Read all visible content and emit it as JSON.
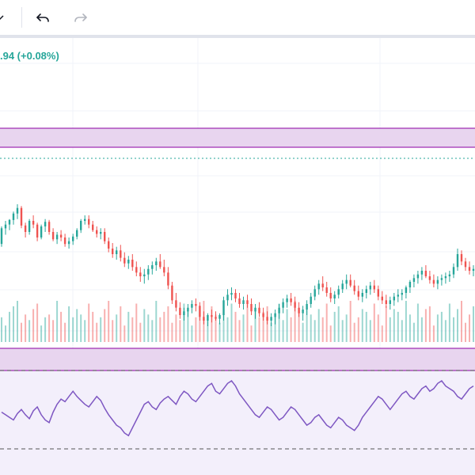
{
  "toolbar": {
    "dropdown_icon": "chevron-down-icon",
    "undo_icon": "undo-icon",
    "redo_icon": "redo-icon"
  },
  "header": {
    "price_change_text": ".94 (+0.08%)"
  },
  "colors": {
    "up": "#26a69a",
    "down": "#ef5350",
    "highlight_band": "#9c27b0",
    "rsi_line": "#7e57c2",
    "rsi_fill": "#ede7f6",
    "grid": "#f0f3fa"
  },
  "chart_data": {
    "type": "candlestick",
    "series": [
      {
        "name": "",
        "type": "candlestick",
        "values": [
          [
            345,
            364,
            342,
            362
          ],
          [
            362,
            370,
            355,
            366
          ],
          [
            366,
            372,
            360,
            371
          ],
          [
            371,
            380,
            366,
            378
          ],
          [
            378,
            388,
            372,
            384
          ],
          [
            384,
            386,
            362,
            365
          ],
          [
            365,
            368,
            352,
            358
          ],
          [
            358,
            372,
            355,
            370
          ],
          [
            370,
            376,
            362,
            366
          ],
          [
            366,
            368,
            348,
            352
          ],
          [
            352,
            366,
            350,
            364
          ],
          [
            364,
            372,
            358,
            369
          ],
          [
            369,
            371,
            355,
            358
          ],
          [
            358,
            362,
            348,
            350
          ],
          [
            350,
            358,
            345,
            355
          ],
          [
            355,
            360,
            348,
            352
          ],
          [
            352,
            356,
            342,
            345
          ],
          [
            345,
            352,
            340,
            348
          ],
          [
            348,
            356,
            344,
            353
          ],
          [
            353,
            362,
            350,
            360
          ],
          [
            360,
            372,
            357,
            370
          ],
          [
            370,
            376,
            366,
            372
          ],
          [
            372,
            376,
            362,
            366
          ],
          [
            366,
            370,
            358,
            360
          ],
          [
            360,
            364,
            352,
            356
          ],
          [
            356,
            362,
            350,
            358
          ],
          [
            358,
            362,
            345,
            348
          ],
          [
            348,
            352,
            336,
            340
          ],
          [
            340,
            346,
            330,
            334
          ],
          [
            334,
            342,
            328,
            338
          ],
          [
            338,
            344,
            326,
            330
          ],
          [
            330,
            336,
            320,
            324
          ],
          [
            324,
            332,
            318,
            328
          ],
          [
            328,
            334,
            316,
            320
          ],
          [
            320,
            326,
            310,
            314
          ],
          [
            314,
            320,
            304,
            310
          ],
          [
            310,
            318,
            302,
            312
          ],
          [
            312,
            322,
            306,
            318
          ],
          [
            318,
            326,
            312,
            322
          ],
          [
            322,
            330,
            316,
            326
          ],
          [
            326,
            334,
            318,
            320
          ],
          [
            320,
            328,
            310,
            314
          ],
          [
            314,
            320,
            296,
            300
          ],
          [
            300,
            304,
            280,
            284
          ],
          [
            284,
            292,
            272,
            276
          ],
          [
            276,
            282,
            264,
            268
          ],
          [
            268,
            276,
            262,
            272
          ],
          [
            272,
            280,
            266,
            276
          ],
          [
            276,
            284,
            270,
            280
          ],
          [
            280,
            286,
            272,
            278
          ],
          [
            278,
            282,
            262,
            266
          ],
          [
            266,
            272,
            258,
            262
          ],
          [
            262,
            270,
            256,
            268
          ],
          [
            268,
            274,
            260,
            266
          ],
          [
            266,
            272,
            262,
            264
          ],
          [
            264,
            270,
            258,
            268
          ],
          [
            268,
            288,
            262,
            284
          ],
          [
            284,
            296,
            278,
            290
          ],
          [
            290,
            298,
            284,
            292
          ],
          [
            292,
            296,
            282,
            286
          ],
          [
            286,
            292,
            276,
            280
          ],
          [
            280,
            288,
            274,
            284
          ],
          [
            284,
            290,
            276,
            280
          ],
          [
            280,
            286,
            268,
            272
          ],
          [
            272,
            280,
            264,
            276
          ],
          [
            276,
            282,
            266,
            270
          ],
          [
            270,
            276,
            262,
            266
          ],
          [
            266,
            272,
            258,
            262
          ],
          [
            262,
            270,
            256,
            266
          ],
          [
            266,
            274,
            258,
            270
          ],
          [
            270,
            280,
            264,
            276
          ],
          [
            276,
            286,
            270,
            282
          ],
          [
            282,
            290,
            276,
            286
          ],
          [
            286,
            292,
            278,
            282
          ],
          [
            282,
            288,
            272,
            276
          ],
          [
            276,
            282,
            266,
            270
          ],
          [
            270,
            278,
            262,
            274
          ],
          [
            274,
            284,
            268,
            280
          ],
          [
            280,
            292,
            276,
            288
          ],
          [
            288,
            300,
            284,
            296
          ],
          [
            296,
            306,
            290,
            302
          ],
          [
            302,
            310,
            294,
            298
          ],
          [
            298,
            304,
            288,
            292
          ],
          [
            292,
            298,
            282,
            286
          ],
          [
            286,
            294,
            280,
            290
          ],
          [
            290,
            300,
            286,
            296
          ],
          [
            296,
            306,
            292,
            302
          ],
          [
            302,
            312,
            296,
            306
          ],
          [
            306,
            312,
            298,
            300
          ],
          [
            300,
            306,
            290,
            294
          ],
          [
            294,
            300,
            284,
            288
          ],
          [
            288,
            296,
            282,
            292
          ],
          [
            292,
            300,
            286,
            296
          ],
          [
            296,
            304,
            290,
            300
          ],
          [
            300,
            306,
            292,
            296
          ],
          [
            296,
            300,
            284,
            288
          ],
          [
            288,
            294,
            280,
            284
          ],
          [
            284,
            290,
            276,
            280
          ],
          [
            280,
            288,
            274,
            284
          ],
          [
            284,
            292,
            278,
            288
          ],
          [
            288,
            296,
            282,
            290
          ],
          [
            290,
            296,
            284,
            292
          ],
          [
            292,
            300,
            286,
            298
          ],
          [
            298,
            306,
            292,
            304
          ],
          [
            304,
            312,
            298,
            308
          ],
          [
            308,
            316,
            302,
            312
          ],
          [
            312,
            320,
            306,
            316
          ],
          [
            316,
            322,
            308,
            310
          ],
          [
            310,
            316,
            302,
            306
          ],
          [
            306,
            312,
            298,
            302
          ],
          [
            302,
            310,
            296,
            306
          ],
          [
            306,
            312,
            300,
            308
          ],
          [
            308,
            314,
            302,
            310
          ],
          [
            310,
            316,
            304,
            312
          ],
          [
            312,
            324,
            308,
            320
          ],
          [
            320,
            340,
            316,
            334
          ],
          [
            334,
            338,
            322,
            326
          ],
          [
            326,
            330,
            316,
            320
          ],
          [
            320,
            326,
            312,
            316
          ],
          [
            316,
            322,
            310,
            318
          ]
        ]
      }
    ],
    "volume": [
      18,
      12,
      22,
      26,
      30,
      14,
      20,
      16,
      24,
      28,
      12,
      18,
      20,
      16,
      30,
      22,
      14,
      26,
      18,
      24,
      20,
      16,
      28,
      22,
      14,
      18,
      24,
      30,
      16,
      20,
      26,
      12,
      22,
      18,
      28,
      14,
      24,
      20,
      16,
      30,
      18,
      22,
      26,
      14,
      20,
      16,
      28,
      24,
      12,
      18,
      22,
      30,
      16,
      26,
      20,
      14,
      24,
      18,
      28,
      22,
      16,
      20,
      30,
      12,
      24,
      18,
      22,
      26,
      14,
      20,
      28,
      16,
      24,
      18,
      30,
      22,
      14,
      26,
      20,
      16,
      24,
      18,
      28,
      12,
      22,
      26,
      16,
      20,
      30,
      14,
      18,
      24,
      22,
      16,
      28,
      20,
      12,
      26,
      18,
      24,
      22,
      16,
      30,
      20,
      14,
      28,
      18,
      24,
      26,
      12,
      20,
      22,
      16,
      28,
      18,
      24,
      30,
      14,
      20,
      26
    ],
    "rsi": [
      46,
      44,
      42,
      40,
      45,
      48,
      44,
      41,
      47,
      50,
      44,
      40,
      38,
      46,
      52,
      56,
      54,
      58,
      62,
      58,
      55,
      52,
      50,
      54,
      58,
      55,
      49,
      44,
      40,
      36,
      34,
      30,
      28,
      34,
      40,
      46,
      52,
      54,
      50,
      48,
      53,
      56,
      58,
      55,
      52,
      58,
      62,
      60,
      56,
      54,
      58,
      62,
      66,
      68,
      62,
      60,
      64,
      68,
      70,
      66,
      60,
      56,
      52,
      48,
      44,
      42,
      46,
      50,
      48,
      44,
      40,
      42,
      46,
      50,
      48,
      44,
      40,
      36,
      38,
      42,
      44,
      40,
      36,
      34,
      38,
      42,
      40,
      36,
      34,
      32,
      36,
      42,
      46,
      50,
      54,
      58,
      56,
      52,
      48,
      52,
      56,
      60,
      62,
      58,
      56,
      60,
      64,
      66,
      62,
      64,
      68,
      70,
      66,
      64,
      62,
      58,
      56,
      60,
      64,
      66
    ],
    "rsi_overbought": 70,
    "rsi_oversold": 30
  }
}
